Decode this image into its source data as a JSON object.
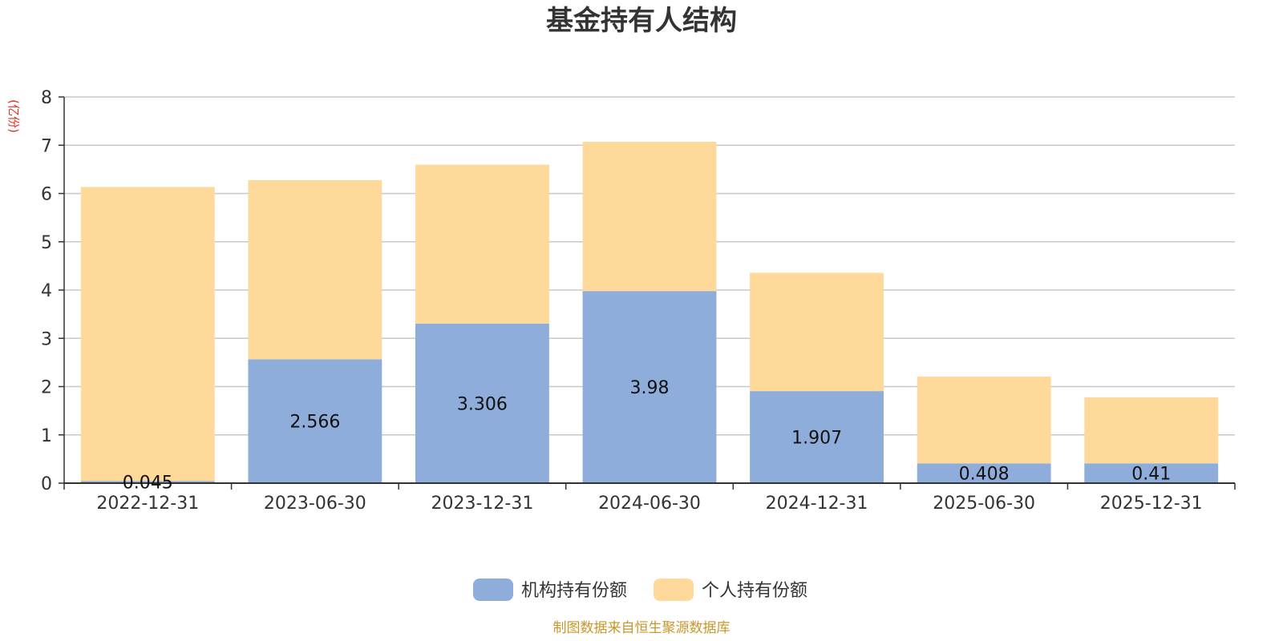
{
  "chart_data": {
    "type": "bar",
    "stacked": true,
    "title": "基金持有人结构",
    "unit_label": "(亿份)",
    "categories": [
      "2022-12-31",
      "2023-06-30",
      "2023-12-31",
      "2024-06-30",
      "2024-12-31",
      "2025-06-30",
      "2025-12-31"
    ],
    "series": [
      {
        "name": "机构持有份额",
        "color": "#8eadda",
        "values": [
          0.045,
          2.566,
          3.306,
          3.98,
          1.907,
          0.408,
          0.41
        ],
        "labels": [
          "0.045",
          "2.566",
          "3.306",
          "3.98",
          "1.907",
          "0.408",
          "0.41"
        ]
      },
      {
        "name": "个人持有份额",
        "color": "#fed999",
        "values": [
          6.09,
          3.71,
          3.29,
          3.09,
          2.45,
          1.8,
          1.37
        ]
      }
    ],
    "ylim": [
      0,
      8
    ],
    "yticks": [
      0,
      1,
      2,
      3,
      4,
      5,
      6,
      7,
      8
    ],
    "grid": true,
    "legend_position": "bottom-center",
    "source_note": "制图数据来自恒生聚源数据库"
  }
}
